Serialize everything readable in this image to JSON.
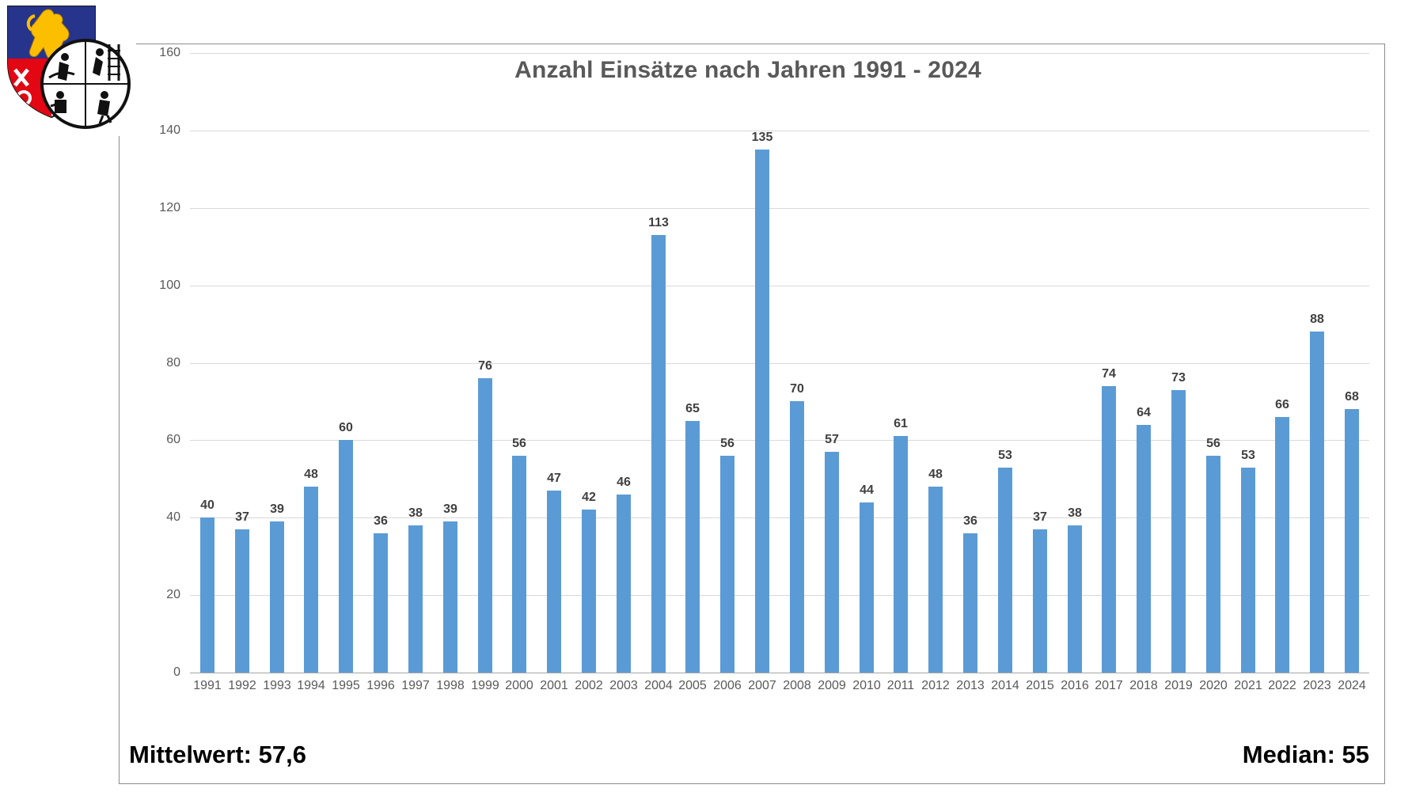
{
  "chart_data": {
    "type": "bar",
    "title": "Anzahl Einsätze nach Jahren 1991 - 2024",
    "categories": [
      "1991",
      "1992",
      "1993",
      "1994",
      "1995",
      "1996",
      "1997",
      "1998",
      "1999",
      "2000",
      "2001",
      "2002",
      "2003",
      "2004",
      "2005",
      "2006",
      "2007",
      "2008",
      "2009",
      "2010",
      "2011",
      "2012",
      "2013",
      "2014",
      "2015",
      "2016",
      "2017",
      "2018",
      "2019",
      "2020",
      "2021",
      "2022",
      "2023",
      "2024"
    ],
    "values": [
      40,
      37,
      39,
      48,
      60,
      36,
      38,
      39,
      76,
      56,
      47,
      42,
      46,
      113,
      65,
      56,
      135,
      70,
      57,
      44,
      61,
      48,
      36,
      53,
      37,
      38,
      74,
      64,
      73,
      56,
      53,
      66,
      88,
      68
    ],
    "xlabel": "",
    "ylabel": "",
    "ylim": [
      0,
      160
    ],
    "yticks": [
      0,
      20,
      40,
      60,
      80,
      100,
      120,
      140,
      160
    ],
    "grid": true,
    "legend": false
  },
  "stats": {
    "mean_label": "Mittelwert: 57,6",
    "mean_value": "57,6",
    "median_label": "Median: 55",
    "median_value": "55"
  },
  "logo": {
    "description": "Wappen mit Feuerwehr-Emblem"
  },
  "colors": {
    "bar": "#5B9BD5",
    "title_text": "#595959",
    "axis_text": "#595959",
    "value_text": "#404040",
    "gridline": "#d9d9d9",
    "axis_line": "#a6a6a6",
    "frame_border": "#8c8c8c"
  }
}
